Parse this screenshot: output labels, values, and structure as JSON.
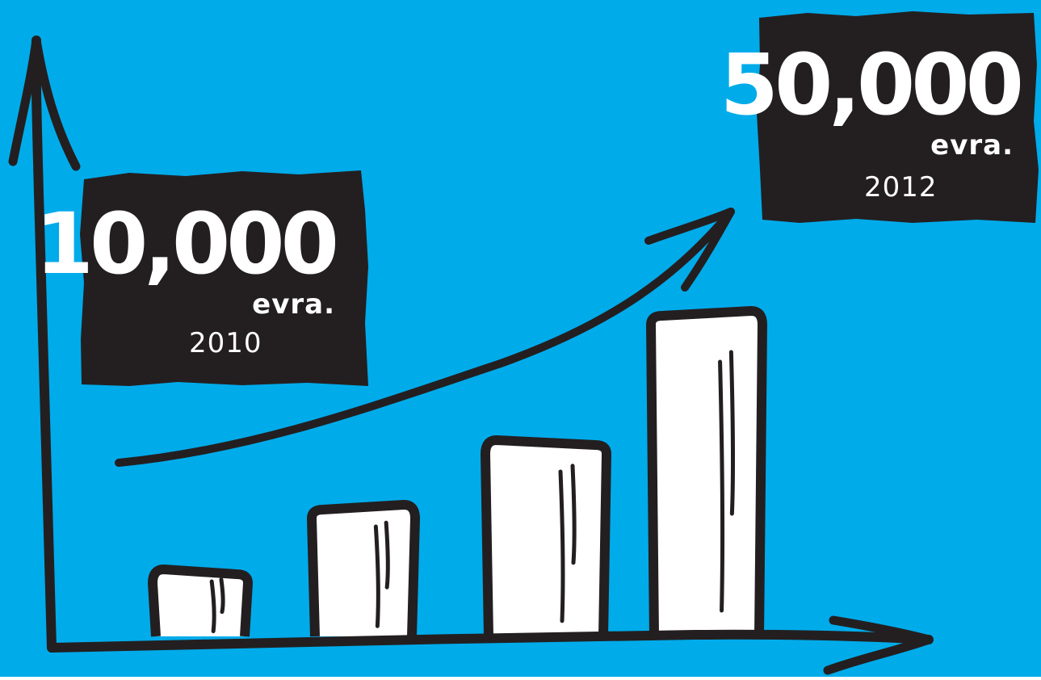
{
  "colors": {
    "background": "#00abea",
    "ink": "#231f20",
    "bar_fill": "#ffffff"
  },
  "chart_data": {
    "type": "bar",
    "categories": [
      "2010",
      "",
      "",
      "2012"
    ],
    "values": [
      10000,
      20000,
      30000,
      50000
    ],
    "xlabel": "",
    "ylabel": "",
    "axes_arrows": true,
    "trend_arrow": true,
    "grid": false,
    "annotations": [
      {
        "amount": "10,000",
        "unit": "evra.",
        "year": "2010"
      },
      {
        "amount": "50,000",
        "unit": "evra.",
        "year": "2012"
      }
    ]
  }
}
